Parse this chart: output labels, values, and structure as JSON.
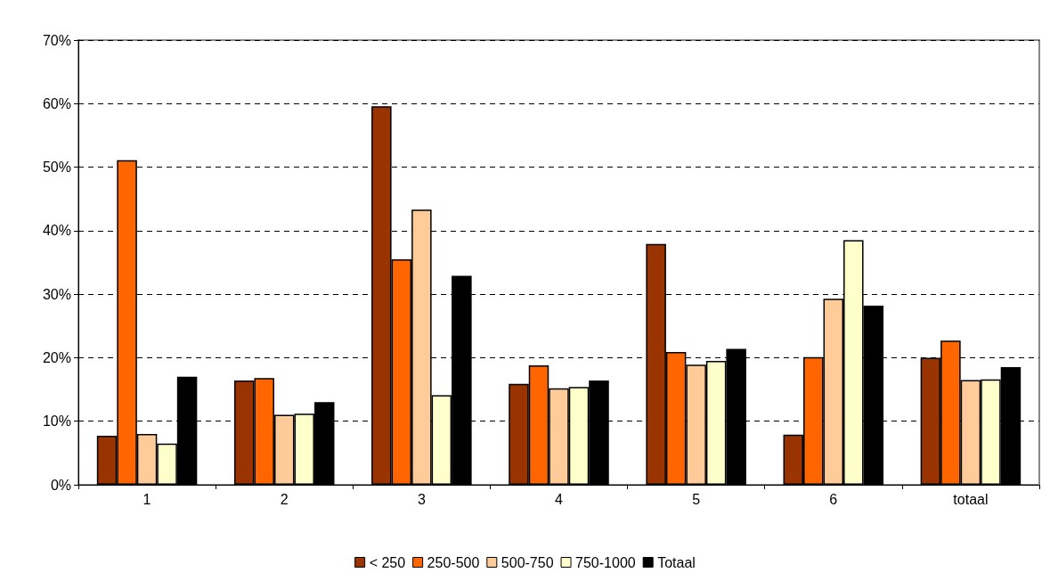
{
  "chart_data": {
    "type": "bar",
    "categories": [
      "1",
      "2",
      "3",
      "4",
      "5",
      "6",
      "totaal"
    ],
    "series": [
      {
        "name": "< 250",
        "color": "#993300",
        "values": [
          7.7,
          16.4,
          59.6,
          15.9,
          37.9,
          7.9,
          20.0
        ]
      },
      {
        "name": "250-500",
        "color": "#ff6600",
        "values": [
          51.1,
          16.8,
          35.5,
          18.8,
          20.9,
          20.1,
          22.7
        ]
      },
      {
        "name": "500-750",
        "color": "#ffcc99",
        "values": [
          8.0,
          11.0,
          43.3,
          15.2,
          18.9,
          29.3,
          16.5
        ]
      },
      {
        "name": "750-1000",
        "color": "#ffffcc",
        "values": [
          6.5,
          11.2,
          14.1,
          15.4,
          19.5,
          38.5,
          16.6
        ]
      },
      {
        "name": "Totaal",
        "color": "#000000",
        "values": [
          17.0,
          13.0,
          32.9,
          16.4,
          21.4,
          28.2,
          18.5
        ]
      }
    ],
    "ylim": [
      0,
      70
    ],
    "yticks": [
      {
        "value": 0,
        "label": "0%"
      },
      {
        "value": 10,
        "label": "10%"
      },
      {
        "value": 20,
        "label": "20%"
      },
      {
        "value": 30,
        "label": "30%"
      },
      {
        "value": 40,
        "label": "40%"
      },
      {
        "value": 50,
        "label": "50%"
      },
      {
        "value": 60,
        "label": "60%"
      },
      {
        "value": 70,
        "label": "70%"
      }
    ],
    "grid": "y",
    "legend": "bottom"
  }
}
